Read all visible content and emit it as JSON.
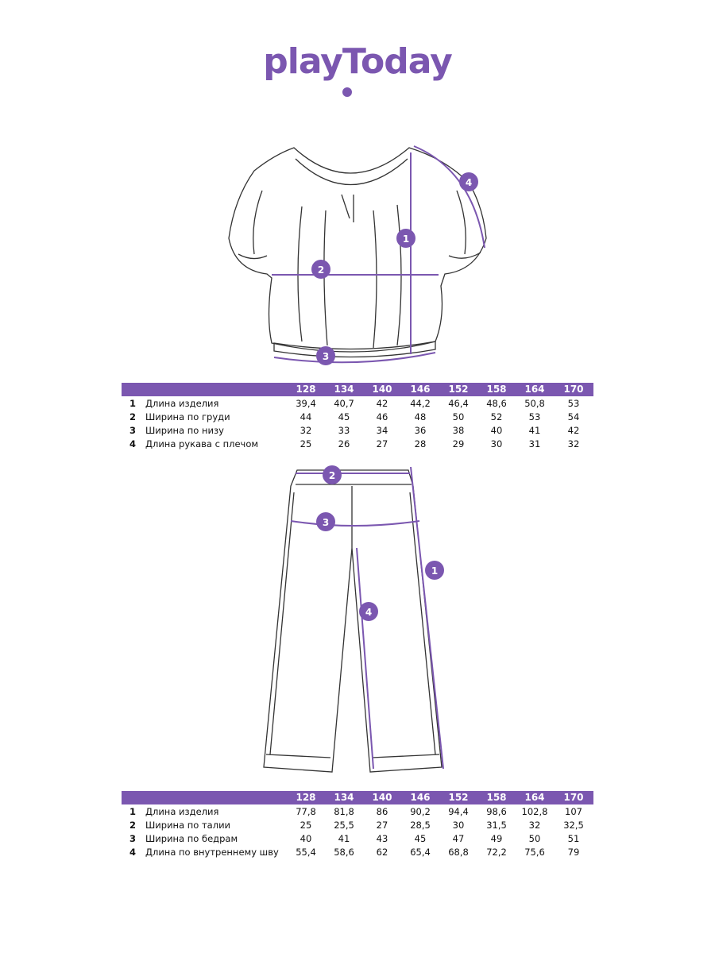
{
  "brand": {
    "logo": "playToday",
    "accent": "#7b57b0"
  },
  "top": {
    "markers": [
      "1",
      "2",
      "3",
      "4"
    ],
    "sizes": [
      "128",
      "134",
      "140",
      "146",
      "152",
      "158",
      "164",
      "170"
    ],
    "rows": [
      {
        "num": "1",
        "label": "Длина изделия",
        "values": [
          "39,4",
          "40,7",
          "42",
          "44,2",
          "46,4",
          "48,6",
          "50,8",
          "53"
        ]
      },
      {
        "num": "2",
        "label": "Ширина по груди",
        "values": [
          "44",
          "45",
          "46",
          "48",
          "50",
          "52",
          "53",
          "54"
        ]
      },
      {
        "num": "3",
        "label": "Ширина по низу",
        "values": [
          "32",
          "33",
          "34",
          "36",
          "38",
          "40",
          "41",
          "42"
        ]
      },
      {
        "num": "4",
        "label": "Длина рукава с плечом",
        "values": [
          "25",
          "26",
          "27",
          "28",
          "29",
          "30",
          "31",
          "32"
        ]
      }
    ]
  },
  "bottom": {
    "markers": [
      "1",
      "2",
      "3",
      "4"
    ],
    "sizes": [
      "128",
      "134",
      "140",
      "146",
      "152",
      "158",
      "164",
      "170"
    ],
    "rows": [
      {
        "num": "1",
        "label": "Длина изделия",
        "values": [
          "77,8",
          "81,8",
          "86",
          "90,2",
          "94,4",
          "98,6",
          "102,8",
          "107"
        ]
      },
      {
        "num": "2",
        "label": "Ширина по талии",
        "values": [
          "25",
          "25,5",
          "27",
          "28,5",
          "30",
          "31,5",
          "32",
          "32,5"
        ]
      },
      {
        "num": "3",
        "label": "Ширина по бедрам",
        "values": [
          "40",
          "41",
          "43",
          "45",
          "47",
          "49",
          "50",
          "51"
        ]
      },
      {
        "num": "4",
        "label": "Длина по внутреннему шву",
        "values": [
          "55,4",
          "58,6",
          "62",
          "65,4",
          "68,8",
          "72,2",
          "75,6",
          "79"
        ]
      }
    ]
  }
}
